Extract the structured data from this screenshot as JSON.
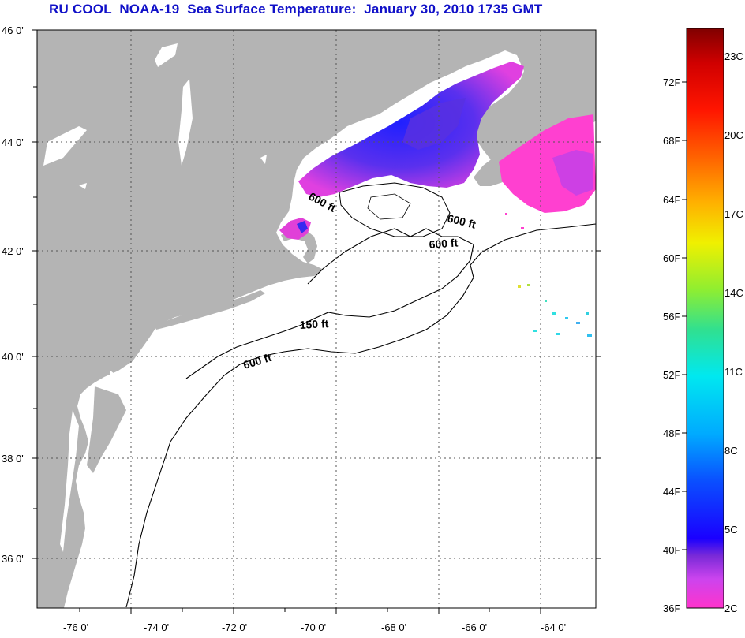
{
  "title": "RU COOL  NOAA-19  Sea Surface Temperature:  January 30, 2010 1735 GMT",
  "map": {
    "lat_ticks": [
      "46 0'",
      "44 0'",
      "42 0'",
      "40 0'",
      "38 0'",
      "36 0'"
    ],
    "lon_ticks": [
      "-76 0'",
      "-74 0'",
      "-72 0'",
      "-70 0'",
      "-68 0'",
      "-66 0'",
      "-64 0'"
    ],
    "contours": [
      "600 ft",
      "600 ft",
      "600 ft",
      "150 ft",
      "600 ft"
    ],
    "land_color": "#b4b4b4",
    "ocean_color": "#ffffff",
    "grid": "dotted"
  },
  "colorbar": {
    "fahrenheit": [
      "72F",
      "68F",
      "64F",
      "60F",
      "56F",
      "52F",
      "48F",
      "44F",
      "40F",
      "36F"
    ],
    "celsius": [
      "23C",
      "20C",
      "17C",
      "14C",
      "11C",
      "8C",
      "5C",
      "2C"
    ],
    "colors": [
      "#ff33cc",
      "#cc44ee",
      "#7a2ad8",
      "#1a00ff",
      "#0a50ff",
      "#00aaff",
      "#00e8f0",
      "#30e090",
      "#90ee30",
      "#f0f000",
      "#ffb000",
      "#ff6000",
      "#ff1500",
      "#d00000",
      "#800000"
    ]
  }
}
